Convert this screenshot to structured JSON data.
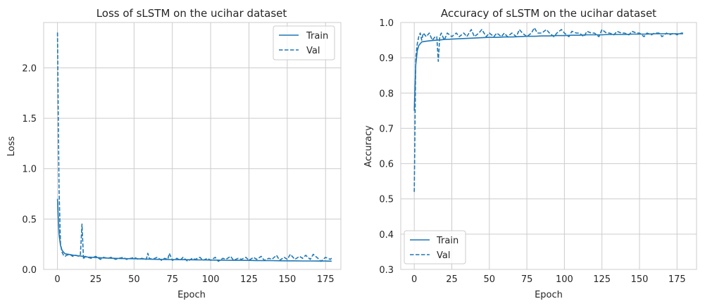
{
  "colors": {
    "series": "#1f77b4",
    "grid": "#cccccc",
    "frame": "#cccccc",
    "text": "#262626",
    "background": "#ffffff"
  },
  "chart_data": [
    {
      "type": "line",
      "title": "Loss of sLSTM on the ucihar dataset",
      "xlabel": "Epoch",
      "ylabel": "Loss",
      "xlim": [
        -9,
        185
      ],
      "ylim": [
        0,
        2.45
      ],
      "xticks": [
        0,
        25,
        50,
        75,
        100,
        125,
        150,
        175
      ],
      "yticks": [
        0.0,
        0.5,
        1.0,
        1.5,
        2.0
      ],
      "ytick_labels": [
        "0.0",
        "0.5",
        "1.0",
        "1.5",
        "2.0"
      ],
      "grid": true,
      "legend": "upper right",
      "series": [
        {
          "name": "Train",
          "style": "solid",
          "x": [
            0,
            1,
            2,
            3,
            4,
            5,
            8,
            10,
            12,
            15,
            17,
            20,
            25,
            30,
            35,
            40,
            45,
            50,
            55,
            60,
            65,
            70,
            75,
            80,
            85,
            90,
            95,
            100,
            105,
            110,
            115,
            120,
            125,
            130,
            135,
            140,
            145,
            150,
            155,
            160,
            165,
            170,
            175,
            179
          ],
          "y": [
            0.7,
            0.35,
            0.24,
            0.19,
            0.17,
            0.155,
            0.148,
            0.142,
            0.138,
            0.133,
            0.128,
            0.122,
            0.118,
            0.114,
            0.111,
            0.109,
            0.107,
            0.106,
            0.104,
            0.102,
            0.1,
            0.099,
            0.098,
            0.097,
            0.096,
            0.095,
            0.094,
            0.093,
            0.092,
            0.091,
            0.09,
            0.09,
            0.089,
            0.088,
            0.087,
            0.087,
            0.086,
            0.085,
            0.085,
            0.084,
            0.084,
            0.083,
            0.083,
            0.082
          ]
        },
        {
          "name": "Val",
          "style": "dashed",
          "x": [
            0,
            1,
            2,
            3,
            4,
            5,
            6,
            8,
            10,
            12,
            14,
            15,
            16,
            17,
            18,
            20,
            22,
            25,
            28,
            30,
            33,
            35,
            38,
            40,
            43,
            45,
            48,
            50,
            53,
            55,
            58,
            59,
            60,
            62,
            65,
            68,
            70,
            72,
            73,
            75,
            78,
            80,
            82,
            85,
            88,
            90,
            93,
            95,
            98,
            100,
            103,
            105,
            108,
            110,
            113,
            115,
            118,
            120,
            123,
            125,
            128,
            130,
            133,
            135,
            138,
            140,
            143,
            145,
            148,
            150,
            152,
            155,
            158,
            160,
            162,
            165,
            167,
            170,
            172,
            175,
            178,
            179
          ],
          "y": [
            2.35,
            0.8,
            0.25,
            0.17,
            0.14,
            0.13,
            0.14,
            0.15,
            0.13,
            0.14,
            0.13,
            0.15,
            0.45,
            0.1,
            0.13,
            0.12,
            0.11,
            0.13,
            0.1,
            0.12,
            0.11,
            0.12,
            0.1,
            0.11,
            0.12,
            0.1,
            0.11,
            0.12,
            0.1,
            0.11,
            0.1,
            0.16,
            0.11,
            0.1,
            0.12,
            0.09,
            0.11,
            0.1,
            0.16,
            0.09,
            0.11,
            0.09,
            0.12,
            0.08,
            0.11,
            0.1,
            0.12,
            0.09,
            0.11,
            0.09,
            0.12,
            0.08,
            0.11,
            0.1,
            0.13,
            0.09,
            0.11,
            0.1,
            0.12,
            0.09,
            0.12,
            0.1,
            0.13,
            0.09,
            0.11,
            0.1,
            0.14,
            0.09,
            0.12,
            0.1,
            0.15,
            0.1,
            0.13,
            0.11,
            0.14,
            0.1,
            0.15,
            0.11,
            0.08,
            0.12,
            0.1,
            0.11
          ]
        }
      ]
    },
    {
      "type": "line",
      "title": "Accuracy of sLSTM on the ucihar dataset",
      "xlabel": "Epoch",
      "ylabel": "Accuracy",
      "xlim": [
        -9,
        188
      ],
      "ylim": [
        0.3,
        1.0
      ],
      "xticks": [
        0,
        25,
        50,
        75,
        100,
        125,
        150,
        175
      ],
      "yticks": [
        0.3,
        0.4,
        0.5,
        0.6,
        0.7,
        0.8,
        0.9,
        1.0
      ],
      "ytick_labels": [
        "0.3",
        "0.4",
        "0.5",
        "0.6",
        "0.7",
        "0.8",
        "0.9",
        "1.0"
      ],
      "grid": true,
      "legend": "lower left",
      "series": [
        {
          "name": "Train",
          "style": "solid",
          "x": [
            0,
            1,
            2,
            3,
            4,
            5,
            8,
            10,
            12,
            15,
            18,
            20,
            25,
            30,
            35,
            40,
            45,
            50,
            55,
            60,
            65,
            70,
            75,
            80,
            85,
            90,
            95,
            100,
            105,
            110,
            115,
            120,
            125,
            130,
            135,
            140,
            145,
            150,
            155,
            160,
            165,
            170,
            175,
            179
          ],
          "y": [
            0.75,
            0.88,
            0.92,
            0.935,
            0.94,
            0.945,
            0.947,
            0.948,
            0.949,
            0.95,
            0.951,
            0.952,
            0.953,
            0.954,
            0.955,
            0.956,
            0.957,
            0.958,
            0.958,
            0.959,
            0.959,
            0.96,
            0.961,
            0.961,
            0.962,
            0.962,
            0.963,
            0.963,
            0.964,
            0.964,
            0.965,
            0.965,
            0.965,
            0.966,
            0.966,
            0.966,
            0.967,
            0.967,
            0.967,
            0.968,
            0.968,
            0.968,
            0.968,
            0.968
          ]
        },
        {
          "name": "Val",
          "style": "dashed",
          "x": [
            0,
            1,
            2,
            3,
            4,
            5,
            6,
            8,
            10,
            12,
            14,
            15,
            16,
            17,
            18,
            20,
            22,
            25,
            28,
            30,
            33,
            35,
            38,
            40,
            43,
            45,
            48,
            50,
            53,
            55,
            58,
            60,
            62,
            65,
            68,
            70,
            72,
            75,
            78,
            80,
            82,
            85,
            88,
            90,
            93,
            95,
            98,
            100,
            103,
            105,
            108,
            110,
            113,
            115,
            118,
            120,
            123,
            125,
            128,
            130,
            133,
            135,
            138,
            140,
            143,
            145,
            148,
            150,
            153,
            155,
            158,
            160,
            163,
            165,
            168,
            170,
            173,
            175,
            178,
            179
          ],
          "y": [
            0.52,
            0.9,
            0.94,
            0.96,
            0.97,
            0.95,
            0.97,
            0.96,
            0.97,
            0.95,
            0.96,
            0.96,
            0.89,
            0.96,
            0.97,
            0.95,
            0.97,
            0.96,
            0.97,
            0.96,
            0.97,
            0.96,
            0.98,
            0.96,
            0.97,
            0.98,
            0.96,
            0.97,
            0.96,
            0.97,
            0.96,
            0.97,
            0.96,
            0.97,
            0.96,
            0.98,
            0.97,
            0.96,
            0.97,
            0.985,
            0.97,
            0.97,
            0.98,
            0.97,
            0.96,
            0.97,
            0.98,
            0.97,
            0.96,
            0.975,
            0.97,
            0.97,
            0.96,
            0.975,
            0.97,
            0.97,
            0.96,
            0.98,
            0.97,
            0.97,
            0.965,
            0.975,
            0.97,
            0.97,
            0.965,
            0.975,
            0.97,
            0.97,
            0.96,
            0.97,
            0.965,
            0.97,
            0.97,
            0.96,
            0.97,
            0.965,
            0.97,
            0.965,
            0.97,
            0.97
          ]
        }
      ]
    }
  ]
}
